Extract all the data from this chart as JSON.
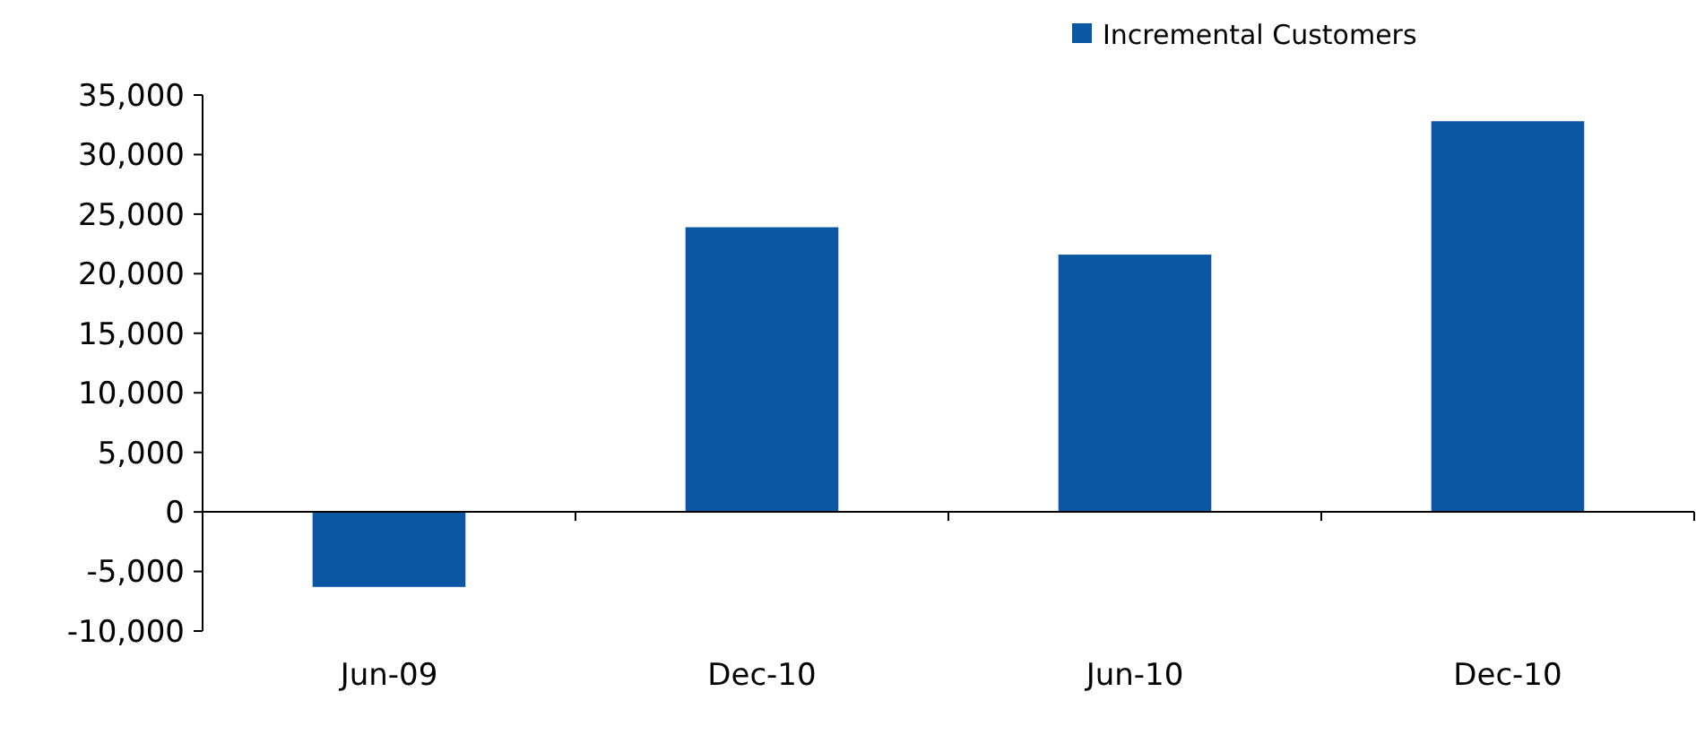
{
  "chart_data": {
    "type": "bar",
    "categories": [
      "Jun-09",
      "Dec-10",
      "Jun-10",
      "Dec-10"
    ],
    "series": [
      {
        "name": "Incremental Customers",
        "color": "#0b57a4",
        "values": [
          -6300,
          23900,
          21600,
          32800
        ]
      }
    ],
    "ylim": [
      -10000,
      35000
    ],
    "yticks": [
      {
        "value": -10000,
        "label": "-10,000"
      },
      {
        "value": -5000,
        "label": "-5,000"
      },
      0,
      {
        "value": 5000,
        "label": "5,000"
      },
      {
        "value": 10000,
        "label": "10,000"
      },
      {
        "value": 15000,
        "label": "15,000"
      },
      {
        "value": 20000,
        "label": "20,000"
      },
      {
        "value": 25000,
        "label": "25,000"
      },
      {
        "value": 30000,
        "label": "30,000"
      },
      {
        "value": 35000,
        "label": "35,000"
      }
    ],
    "legend": "top right"
  }
}
